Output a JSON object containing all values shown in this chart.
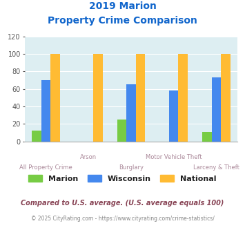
{
  "title_line1": "2019 Marion",
  "title_line2": "Property Crime Comparison",
  "categories": [
    "All Property Crime",
    "Arson",
    "Burglary",
    "Motor Vehicle Theft",
    "Larceny & Theft"
  ],
  "marion": [
    12,
    0,
    25,
    0,
    11
  ],
  "wisconsin": [
    70,
    0,
    65,
    58,
    73
  ],
  "national": [
    100,
    100,
    100,
    100,
    100
  ],
  "colors": {
    "marion": "#77cc44",
    "wisconsin": "#4488ee",
    "national": "#ffbb33"
  },
  "ylim": [
    0,
    120
  ],
  "yticks": [
    0,
    20,
    40,
    60,
    80,
    100,
    120
  ],
  "plot_bg": "#ddeef2",
  "title_color": "#1166cc",
  "xlabel_color": "#aa8899",
  "legend_labels": [
    "Marion",
    "Wisconsin",
    "National"
  ],
  "footnote1": "Compared to U.S. average. (U.S. average equals 100)",
  "footnote2": "© 2025 CityRating.com - https://www.cityrating.com/crime-statistics/",
  "footnote1_color": "#884455",
  "footnote2_color": "#888888",
  "bar_width": 0.22
}
